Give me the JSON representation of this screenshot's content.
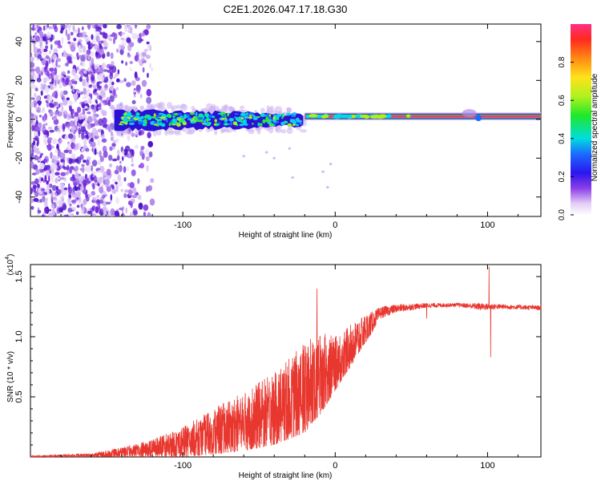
{
  "title": "C2E1.2026.047.17.18.G30",
  "chart_data": [
    {
      "type": "heatmap",
      "name": "spectrogram",
      "xlabel": "Height of straight line (km)",
      "ylabel": "Frequency (Hz)",
      "xlim": [
        -200,
        135
      ],
      "ylim": [
        -50,
        49
      ],
      "x_ticks": [
        -100,
        0,
        100
      ],
      "y_ticks": [
        -40,
        -20,
        0,
        20,
        40
      ],
      "colorbar": {
        "label": "Normalized spectral amplitude",
        "range": [
          0.0,
          1.0
        ],
        "ticks": [
          0.0,
          0.2,
          0.4,
          0.6,
          0.8
        ],
        "tick_labels": [
          "0.0",
          "0.2",
          "0.4",
          "0.6",
          "0.8"
        ]
      },
      "features": {
        "scatter_region_x": [
          -200,
          -120
        ],
        "scatter_freq_range": [
          -50,
          49
        ],
        "turbulent_band_x": [
          -145,
          -20
        ],
        "turbulent_band_center_hz": 0,
        "coherent_line_x": [
          -20,
          135
        ],
        "coherent_line_hz": 1.5
      }
    },
    {
      "type": "line",
      "name": "snr",
      "xlabel": "Height of straight line (km)",
      "ylabel": "SNR (10 * v/v)",
      "multiplier": "(x10",
      "multiplier_exp": "4",
      "multiplier_close": ")",
      "xlim": [
        -200,
        135
      ],
      "ylim": [
        0,
        1.6
      ],
      "x_ticks": [
        -100,
        0,
        100
      ],
      "y_ticks": [
        0.5,
        1.0,
        1.5
      ],
      "y_tick_labels": [
        "0.5",
        "1.0",
        "1.5"
      ],
      "color": "#e8372f",
      "envelope": [
        {
          "x": -200,
          "lo": 0.0,
          "hi": 0.01
        },
        {
          "x": -160,
          "lo": 0.0,
          "hi": 0.03
        },
        {
          "x": -140,
          "lo": 0.0,
          "hi": 0.08
        },
        {
          "x": -120,
          "lo": 0.0,
          "hi": 0.15
        },
        {
          "x": -100,
          "lo": 0.0,
          "hi": 0.25
        },
        {
          "x": -80,
          "lo": 0.02,
          "hi": 0.4
        },
        {
          "x": -60,
          "lo": 0.05,
          "hi": 0.55
        },
        {
          "x": -40,
          "lo": 0.1,
          "hi": 0.7
        },
        {
          "x": -20,
          "lo": 0.2,
          "hi": 0.95
        },
        {
          "x": -10,
          "lo": 0.35,
          "hi": 1.05
        },
        {
          "x": 0,
          "lo": 0.55,
          "hi": 1.0
        },
        {
          "x": 10,
          "lo": 0.75,
          "hi": 1.1
        },
        {
          "x": 20,
          "lo": 0.95,
          "hi": 1.18
        },
        {
          "x": 30,
          "lo": 1.15,
          "hi": 1.25
        },
        {
          "x": 40,
          "lo": 1.2,
          "hi": 1.27
        },
        {
          "x": 60,
          "lo": 1.24,
          "hi": 1.28
        },
        {
          "x": 80,
          "lo": 1.25,
          "hi": 1.28
        },
        {
          "x": 95,
          "lo": 1.22,
          "hi": 1.28
        },
        {
          "x": 110,
          "lo": 1.23,
          "hi": 1.27
        },
        {
          "x": 135,
          "lo": 1.22,
          "hi": 1.26
        }
      ],
      "spikes": [
        {
          "x": -12,
          "value": 1.4
        },
        {
          "x": 60,
          "value": 1.15
        },
        {
          "x": 101,
          "value": 1.58
        },
        {
          "x": 102,
          "value": 0.83
        }
      ]
    }
  ]
}
